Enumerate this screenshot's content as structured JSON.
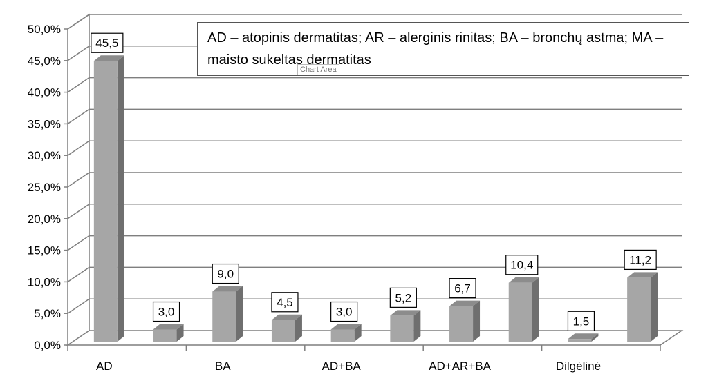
{
  "chart_data": {
    "type": "bar",
    "categories": [
      "AD",
      "",
      "BA",
      "",
      "AD+BA",
      "",
      "AD+AR+BA",
      "",
      "Dilgėlinė",
      ""
    ],
    "values": [
      45.5,
      3.0,
      9.0,
      4.5,
      3.0,
      5.2,
      6.7,
      10.4,
      1.5,
      11.2
    ],
    "data_labels": [
      "45,5",
      "3,0",
      "9,0",
      "4,5",
      "3,0",
      "5,2",
      "6,7",
      "10,4",
      "1,5",
      "11,2"
    ],
    "ylim": [
      0,
      50
    ],
    "yticks": [
      "0,0%",
      "5,0%",
      "10,0%",
      "15,0%",
      "20,0%",
      "25,0%",
      "30,0%",
      "35,0%",
      "40,0%",
      "45,0%",
      "50,0%"
    ],
    "grid": true,
    "legend_note": "AD – atopinis dermatitas; AR – alerginis rinitas; BA – bronchų astma; MA – maisto sukeltas dermatitas",
    "colors": {
      "bar_front": "#a6a6a6",
      "bar_side": "#6f6f6f",
      "bar_top": "#8c8c8c",
      "grid": "#7f7f7f"
    }
  },
  "tooltip": "Chart Area"
}
